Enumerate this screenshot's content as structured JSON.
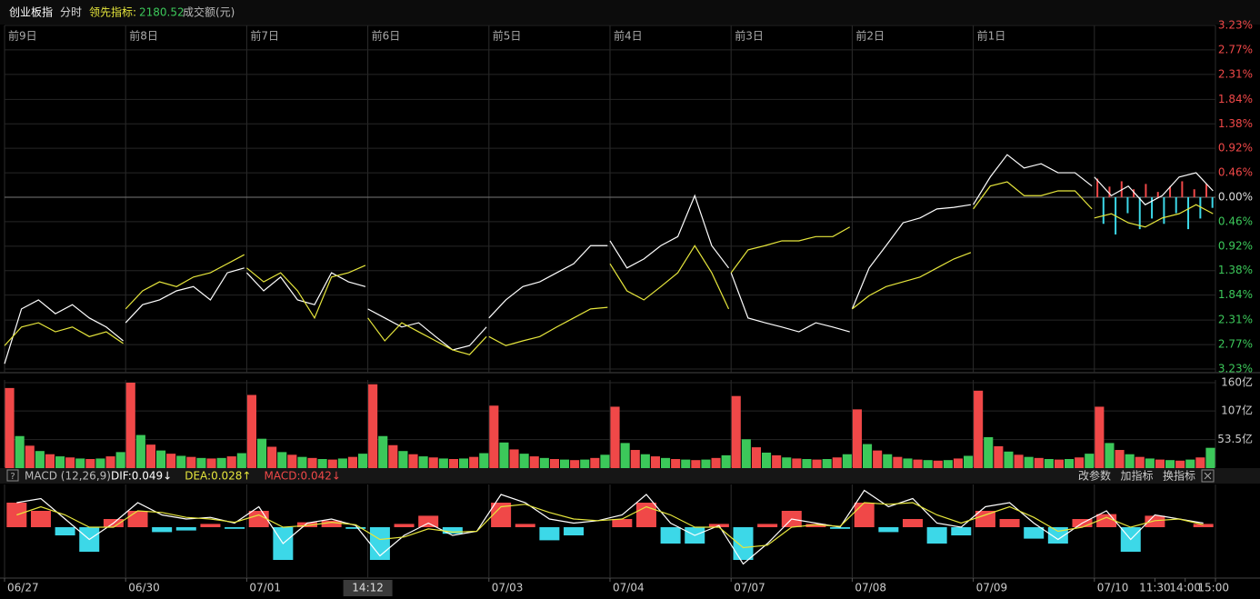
{
  "header": {
    "index": "创业板指",
    "mode": "分时",
    "leading_label": "领先指标:",
    "leading_value": 2180.52,
    "volume_label": "成交额(元)"
  },
  "chart_data": [
    {
      "type": "line",
      "ylim": [
        -3.23,
        3.23
      ],
      "yticks": [
        {
          "value": 3.23,
          "label": "3.23%"
        },
        {
          "value": 2.77,
          "label": "2.77%"
        },
        {
          "value": 2.31,
          "label": "2.31%"
        },
        {
          "value": 1.84,
          "label": "1.84%"
        },
        {
          "value": 1.38,
          "label": "1.38%"
        },
        {
          "value": 0.92,
          "label": "0.92%"
        },
        {
          "value": 0.46,
          "label": "0.46%"
        },
        {
          "value": 0,
          "label": "0.00%"
        },
        {
          "value": -0.46,
          "label": "0.46%"
        },
        {
          "value": -0.92,
          "label": "0.92%"
        },
        {
          "value": -1.38,
          "label": "1.38%"
        },
        {
          "value": -1.84,
          "label": "1.84%"
        },
        {
          "value": -2.31,
          "label": "2.31%"
        },
        {
          "value": -2.77,
          "label": "2.77%"
        },
        {
          "value": -3.23,
          "label": "3.23%"
        }
      ],
      "up_color": "#f04848",
      "down_color": "#3cc85a",
      "grid": true,
      "day_labels": [
        "前9日",
        "前8日",
        "前7日",
        "前6日",
        "前5日",
        "前4日",
        "前3日",
        "前2日",
        "前1日"
      ],
      "series": [
        {
          "color": "#ffffff",
          "values": [
            [
              -3.13,
              -2.1,
              -1.93,
              -2.19,
              -2.02,
              -2.27,
              -2.44,
              -2.7
            ],
            [
              -2.36,
              -2.02,
              -1.93,
              -1.76,
              -1.68,
              -1.93,
              -1.42,
              -1.33
            ],
            [
              -1.42,
              -1.76,
              -1.5,
              -1.93,
              -2.02,
              -1.42,
              -1.59,
              -1.68
            ],
            [
              -2.1,
              -2.27,
              -2.44,
              -2.36,
              -2.62,
              -2.87,
              -2.79,
              -2.44
            ],
            [
              -2.27,
              -1.93,
              -1.68,
              -1.59,
              -1.42,
              -1.25,
              -0.91,
              -0.91
            ],
            [
              -0.82,
              -1.33,
              -1.16,
              -0.91,
              -0.74,
              0.03,
              -0.91,
              -1.33
            ],
            [
              -1.42,
              -2.27,
              -2.36,
              -2.44,
              -2.53,
              -2.36,
              -2.44,
              -2.53
            ],
            [
              -2.1,
              -1.33,
              -0.91,
              -0.48,
              -0.39,
              -0.22,
              -0.19,
              -0.14
            ],
            [
              -0.14,
              0.38,
              0.8,
              0.55,
              0.63,
              0.46,
              0.46,
              0.21
            ],
            [
              0.38,
              0.03,
              0.21,
              -0.14,
              0.03,
              0.38,
              0.46,
              0.12
            ]
          ]
        },
        {
          "color": "#e6e63c",
          "values": [
            [
              -2.79,
              -2.44,
              -2.36,
              -2.53,
              -2.44,
              -2.62,
              -2.53,
              -2.75
            ],
            [
              -2.1,
              -1.76,
              -1.59,
              -1.68,
              -1.5,
              -1.42,
              -1.25,
              -1.08
            ],
            [
              -1.33,
              -1.59,
              -1.42,
              -1.76,
              -2.27,
              -1.5,
              -1.42,
              -1.28
            ],
            [
              -2.27,
              -2.7,
              -2.36,
              -2.53,
              -2.7,
              -2.87,
              -2.96,
              -2.62
            ],
            [
              -2.62,
              -2.79,
              -2.7,
              -2.62,
              -2.44,
              -2.27,
              -2.1,
              -2.07
            ],
            [
              -1.25,
              -1.76,
              -1.93,
              -1.68,
              -1.42,
              -0.91,
              -1.42,
              -2.1
            ],
            [
              -1.42,
              -0.99,
              -0.91,
              -0.82,
              -0.82,
              -0.74,
              -0.74,
              -0.56
            ],
            [
              -2.1,
              -1.85,
              -1.68,
              -1.59,
              -1.5,
              -1.33,
              -1.16,
              -1.04
            ],
            [
              -0.22,
              0.21,
              0.29,
              0.03,
              0.03,
              0.12,
              0.12,
              -0.22
            ],
            [
              -0.39,
              -0.31,
              -0.48,
              -0.56,
              -0.39,
              -0.31,
              -0.14,
              -0.31
            ]
          ]
        }
      ],
      "bars": {
        "up_color": "#f04848",
        "down_color": "#3cd8e8",
        "values": [
          0.35,
          -0.5,
          0.2,
          -0.7,
          0.3,
          -0.3,
          0.15,
          -0.6,
          0.25,
          -0.4,
          0.1,
          -0.5,
          0.2,
          -0.3,
          0.3,
          -0.6,
          0.15,
          -0.4,
          0.25,
          -0.2
        ]
      }
    },
    {
      "type": "bar",
      "ylim": [
        0,
        160
      ],
      "yticks": [
        {
          "value": 160,
          "label": "160亿"
        },
        {
          "value": 107,
          "label": "107亿"
        },
        {
          "value": 53.5,
          "label": "53.5亿"
        }
      ],
      "colors": [
        "#f04848",
        "#3cc85a"
      ],
      "values": [
        [
          150,
          60,
          42,
          32,
          26,
          22,
          20,
          18,
          17,
          18,
          22,
          30
        ],
        [
          160,
          62,
          44,
          33,
          27,
          23,
          21,
          19,
          18,
          19,
          22,
          28
        ],
        [
          137,
          55,
          40,
          30,
          25,
          21,
          19,
          17,
          16,
          18,
          21,
          27
        ],
        [
          157,
          60,
          43,
          32,
          26,
          22,
          20,
          18,
          17,
          18,
          21,
          28
        ],
        [
          117,
          48,
          35,
          27,
          22,
          19,
          17,
          16,
          15,
          16,
          19,
          25
        ],
        [
          115,
          47,
          34,
          26,
          22,
          19,
          17,
          16,
          15,
          16,
          19,
          24
        ],
        [
          135,
          54,
          39,
          29,
          24,
          20,
          18,
          17,
          16,
          17,
          20,
          26
        ],
        [
          110,
          45,
          33,
          26,
          21,
          18,
          16,
          15,
          14,
          15,
          18,
          23
        ],
        [
          145,
          58,
          41,
          31,
          25,
          21,
          19,
          17,
          16,
          17,
          20,
          27
        ],
        [
          115,
          47,
          34,
          26,
          21,
          18,
          16,
          15,
          14,
          16,
          20,
          38
        ]
      ]
    },
    {
      "type": "macd",
      "ylim": [
        -0.5,
        0.5
      ],
      "help_icon": "?",
      "indicator": "MACD (12,26,9)",
      "readouts": [
        {
          "text": "DIF:0.049↓",
          "color": "#ffffff"
        },
        {
          "text": "DEA:0.028↑",
          "color": "#e6e63c"
        },
        {
          "text": "MACD:0.042↓",
          "color": "#f04848"
        }
      ],
      "buttons": [
        "改参数",
        "加指标",
        "换指标"
      ],
      "series": [
        {
          "color": "#ffffff",
          "values": [
            0.3,
            0.35,
            0.1,
            -0.15,
            0.05,
            0.3,
            0.15,
            0.1,
            0.12,
            0.05,
            0.25,
            -0.2,
            0.05,
            0.1,
            0.02,
            -0.35,
            -0.1,
            0.05,
            -0.1,
            -0.05,
            0.4,
            0.3,
            0.1,
            0.05,
            0.08,
            0.15,
            0.4,
            0.05,
            -0.1,
            0.02,
            -0.45,
            -0.2,
            0.1,
            0.05,
            0.0,
            0.45,
            0.25,
            0.35,
            0.05,
            0.0,
            0.25,
            0.3,
            0.05,
            -0.15,
            0.05,
            0.2,
            -0.15,
            0.15,
            0.1,
            0.05
          ]
        },
        {
          "color": "#e6e63c",
          "values": [
            0.15,
            0.25,
            0.15,
            0.0,
            0.0,
            0.2,
            0.18,
            0.12,
            0.1,
            0.06,
            0.15,
            0.0,
            0.02,
            0.06,
            0.03,
            -0.15,
            -0.12,
            -0.02,
            -0.06,
            -0.05,
            0.25,
            0.28,
            0.18,
            0.1,
            0.08,
            0.1,
            0.25,
            0.15,
            0.0,
            0.0,
            -0.25,
            -0.22,
            0.0,
            0.03,
            0.01,
            0.3,
            0.28,
            0.3,
            0.15,
            0.05,
            0.15,
            0.25,
            0.12,
            -0.05,
            0.0,
            0.12,
            0.0,
            0.08,
            0.1,
            0.03
          ]
        }
      ],
      "histogram": {
        "up_color": "#f04848",
        "down_color": "#3cd8e8",
        "values": [
          0.3,
          0.2,
          -0.1,
          -0.3,
          0.1,
          0.2,
          -0.06,
          -0.04,
          0.04,
          -0.02,
          0.2,
          -0.4,
          0.06,
          0.08,
          -0.02,
          -0.4,
          0.04,
          0.14,
          -0.08,
          0.0,
          0.3,
          0.04,
          -0.16,
          -0.1,
          0.0,
          0.1,
          0.3,
          -0.2,
          -0.2,
          0.04,
          -0.4,
          0.04,
          0.2,
          0.04,
          -0.02,
          0.3,
          -0.06,
          0.1,
          -0.2,
          -0.1,
          0.2,
          0.1,
          -0.14,
          -0.2,
          0.1,
          0.16,
          -0.3,
          0.14,
          0.0,
          0.04
        ]
      },
      "xlim": [
        0,
        10
      ],
      "xticks": [
        {
          "value": 0,
          "label": "06/27"
        },
        {
          "value": 1,
          "label": "06/30"
        },
        {
          "value": 2,
          "label": "07/01"
        },
        {
          "value": 4,
          "label": "07/03"
        },
        {
          "value": 5,
          "label": "07/04"
        },
        {
          "value": 6,
          "label": "07/07"
        },
        {
          "value": 7,
          "label": "07/08"
        },
        {
          "value": 8,
          "label": "07/09"
        },
        {
          "value": 9,
          "label": "07/10"
        },
        {
          "value": 9.5,
          "label": "11:30"
        },
        {
          "value": 9.75,
          "label": "14:00"
        },
        {
          "value": 10,
          "label": "15:00"
        }
      ],
      "cursor": {
        "value": 3,
        "label": "14:12"
      }
    }
  ]
}
